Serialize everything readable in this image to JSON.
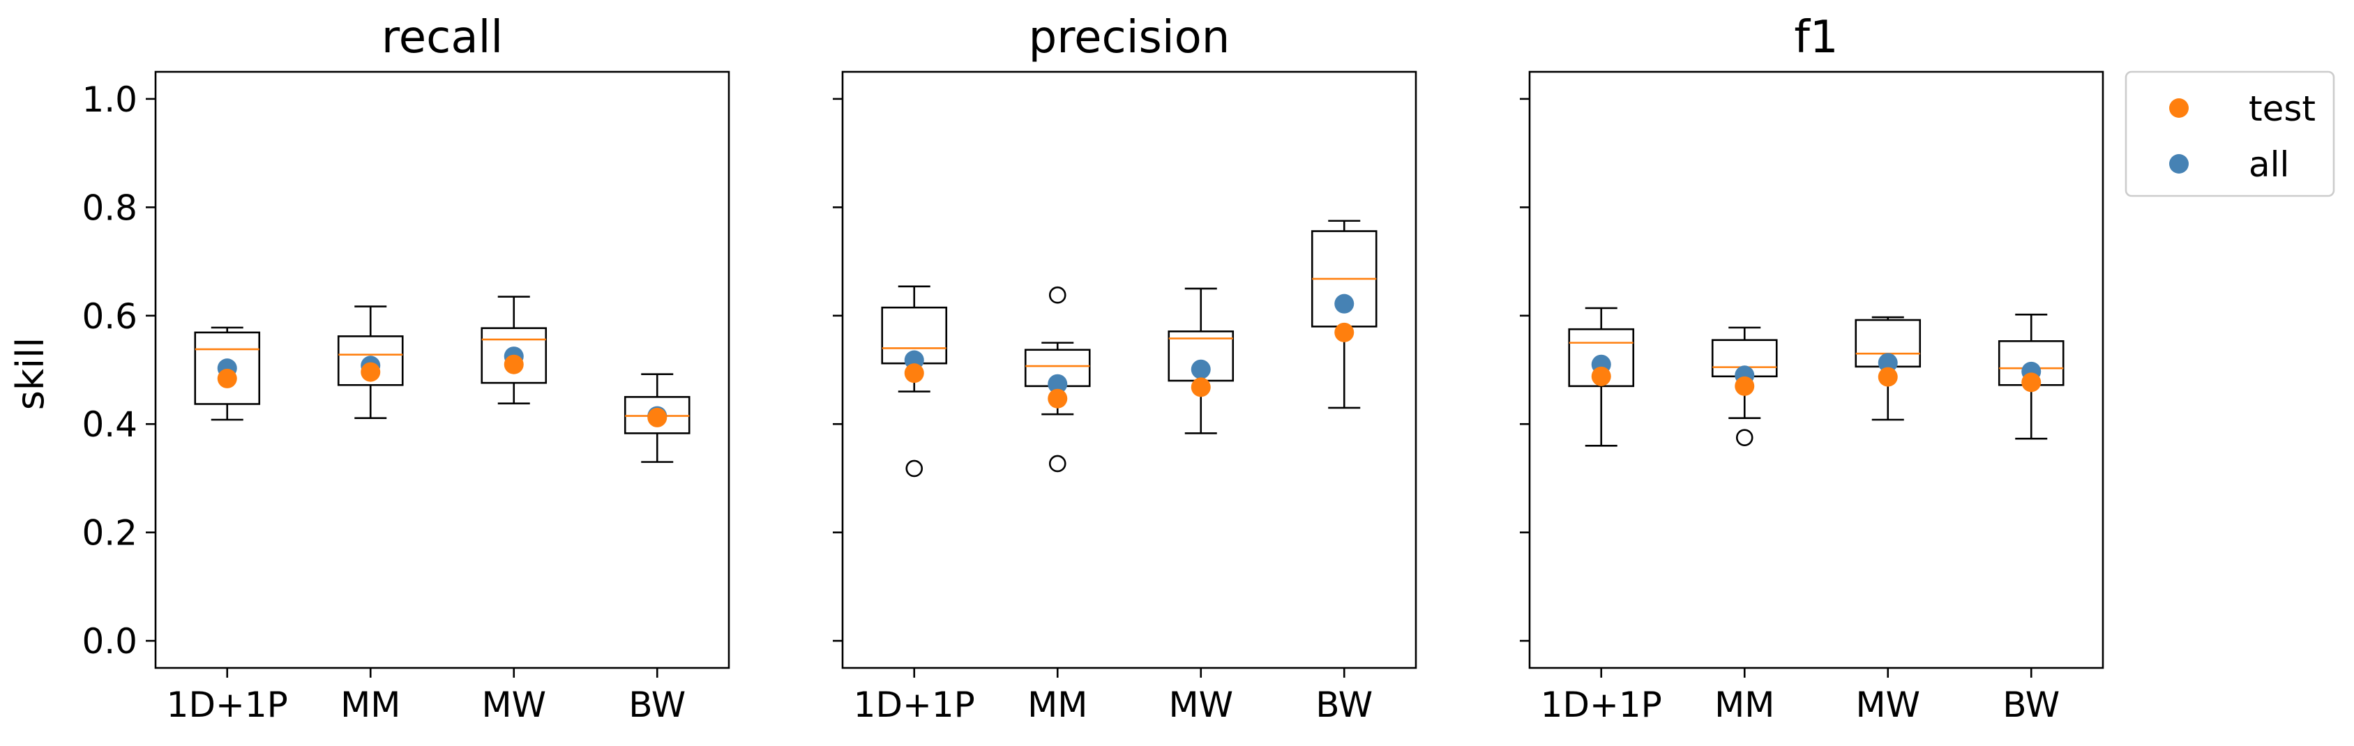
{
  "chart_data": {
    "type": "box",
    "ylabel": "skill",
    "ylim": [
      -0.05,
      1.05
    ],
    "yticks": [
      "0.0",
      "0.2",
      "0.4",
      "0.6",
      "0.8",
      "1.0"
    ],
    "categories": [
      "1D+1P",
      "MM",
      "MW",
      "BW"
    ],
    "legend": {
      "placement": "outside-top-right",
      "entries": [
        {
          "name": "test",
          "color": "#ff7f0e"
        },
        {
          "name": "all",
          "color": "#4682b4"
        }
      ]
    },
    "colors": {
      "median": "#ff7f0e",
      "test": "#ff7f0e",
      "all": "#4682b4"
    },
    "panels": [
      {
        "title": "recall",
        "boxes": [
          {
            "category": "1D+1P",
            "whislo": 0.408,
            "q1": 0.437,
            "med": 0.538,
            "q3": 0.569,
            "whishi": 0.578,
            "fliers": []
          },
          {
            "category": "MM",
            "whislo": 0.411,
            "q1": 0.472,
            "med": 0.528,
            "q3": 0.562,
            "whishi": 0.617,
            "fliers": []
          },
          {
            "category": "MW",
            "whislo": 0.438,
            "q1": 0.476,
            "med": 0.556,
            "q3": 0.577,
            "whishi": 0.635,
            "fliers": []
          },
          {
            "category": "BW",
            "whislo": 0.33,
            "q1": 0.383,
            "med": 0.415,
            "q3": 0.45,
            "whishi": 0.492,
            "fliers": []
          }
        ],
        "test": [
          0.484,
          0.496,
          0.51,
          0.412
        ],
        "all": [
          0.503,
          0.508,
          0.525,
          0.415
        ]
      },
      {
        "title": "precision",
        "boxes": [
          {
            "category": "1D+1P",
            "whislo": 0.46,
            "q1": 0.512,
            "med": 0.54,
            "q3": 0.615,
            "whishi": 0.654,
            "fliers": [
              0.318
            ]
          },
          {
            "category": "MM",
            "whislo": 0.418,
            "q1": 0.47,
            "med": 0.507,
            "q3": 0.537,
            "whishi": 0.55,
            "fliers": [
              0.327,
              0.638
            ]
          },
          {
            "category": "MW",
            "whislo": 0.383,
            "q1": 0.48,
            "med": 0.558,
            "q3": 0.571,
            "whishi": 0.65,
            "fliers": []
          },
          {
            "category": "BW",
            "whislo": 0.43,
            "q1": 0.58,
            "med": 0.668,
            "q3": 0.756,
            "whishi": 0.775,
            "fliers": []
          }
        ],
        "test": [
          0.494,
          0.447,
          0.468,
          0.569
        ],
        "all": [
          0.518,
          0.474,
          0.501,
          0.622
        ]
      },
      {
        "title": "f1",
        "boxes": [
          {
            "category": "1D+1P",
            "whislo": 0.36,
            "q1": 0.47,
            "med": 0.55,
            "q3": 0.575,
            "whishi": 0.614,
            "fliers": []
          },
          {
            "category": "MM",
            "whislo": 0.411,
            "q1": 0.488,
            "med": 0.505,
            "q3": 0.555,
            "whishi": 0.578,
            "fliers": [
              0.375
            ]
          },
          {
            "category": "MW",
            "whislo": 0.408,
            "q1": 0.506,
            "med": 0.53,
            "q3": 0.592,
            "whishi": 0.597,
            "fliers": []
          },
          {
            "category": "BW",
            "whislo": 0.373,
            "q1": 0.472,
            "med": 0.503,
            "q3": 0.553,
            "whishi": 0.602,
            "fliers": []
          }
        ],
        "test": [
          0.488,
          0.47,
          0.487,
          0.477
        ],
        "all": [
          0.51,
          0.49,
          0.513,
          0.497
        ]
      }
    ]
  }
}
